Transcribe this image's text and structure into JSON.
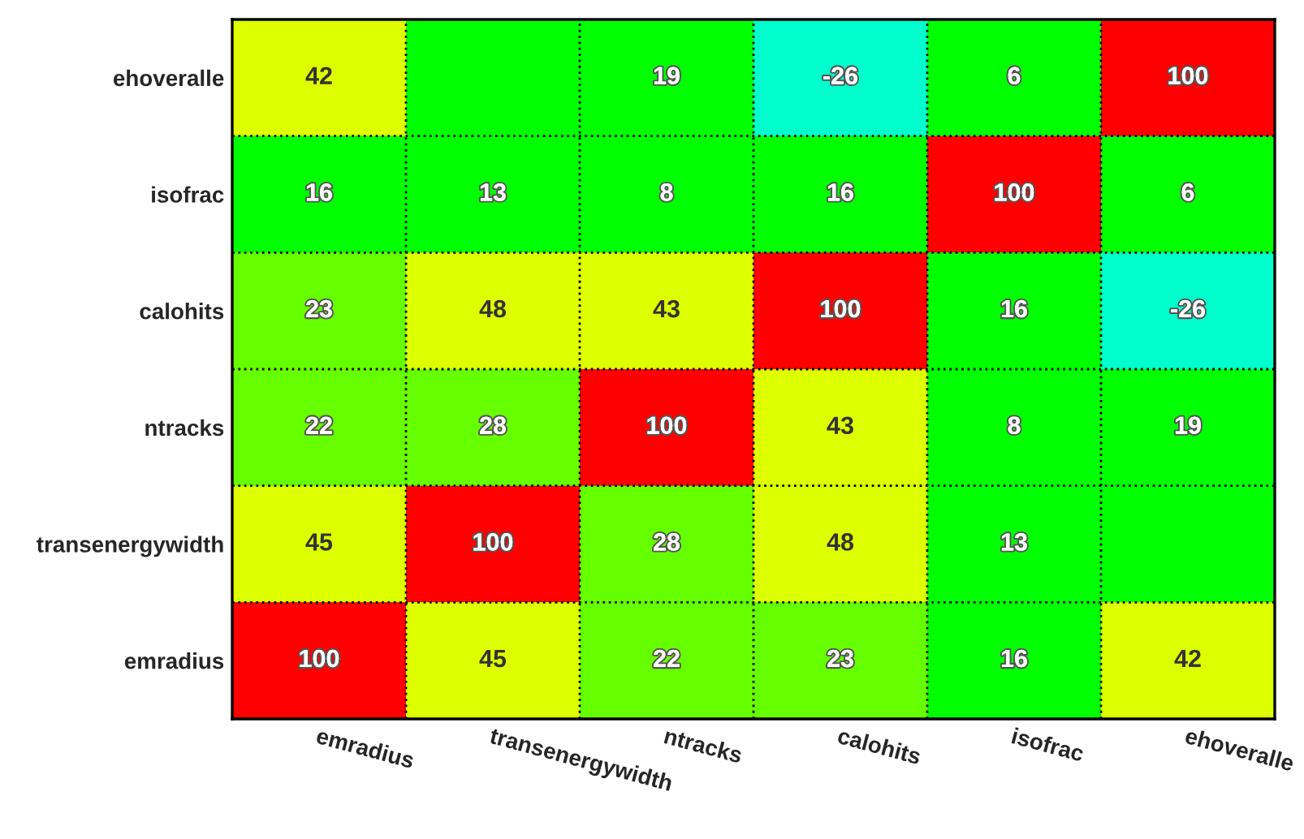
{
  "chart_data": {
    "type": "heatmap",
    "categories": [
      "emradius",
      "transenergywidth",
      "ntracks",
      "calohits",
      "isofrac",
      "ehoveralle"
    ],
    "y_categories": [
      "ehoveralle",
      "isofrac",
      "calohits",
      "ntracks",
      "transenergywidth",
      "emradius"
    ],
    "cells": [
      [
        42,
        null,
        19,
        -26,
        6,
        100
      ],
      [
        16,
        13,
        8,
        16,
        100,
        6
      ],
      [
        23,
        48,
        43,
        100,
        16,
        -26
      ],
      [
        22,
        28,
        100,
        43,
        8,
        19
      ],
      [
        45,
        100,
        28,
        48,
        13,
        null
      ],
      [
        100,
        45,
        22,
        23,
        16,
        42
      ]
    ],
    "cell_labels": [
      [
        "42",
        null,
        "19",
        "-26",
        "6",
        "100"
      ],
      [
        "16",
        "13",
        "8",
        "16",
        "100",
        "6"
      ],
      [
        "23",
        "48",
        "43",
        "100",
        "16",
        "-26"
      ],
      [
        "22",
        "28",
        "100",
        "43",
        "8",
        "19"
      ],
      [
        "45",
        "100",
        "28",
        "48",
        "13",
        null
      ],
      [
        "100",
        "45",
        "22",
        "23",
        "16",
        "42"
      ]
    ],
    "grid": true
  }
}
